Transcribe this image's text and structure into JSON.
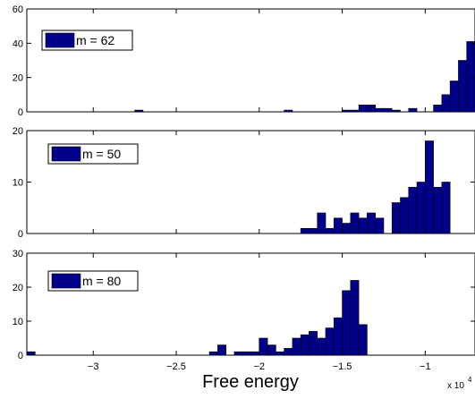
{
  "chart_data": [
    {
      "type": "bar",
      "legend": "m = 62",
      "ylim": [
        0,
        60
      ],
      "yticks": [
        0,
        20,
        40,
        60
      ],
      "bin_width": 0.05,
      "bins": [
        {
          "x": -2.725,
          "y": 1
        },
        {
          "x": -1.825,
          "y": 1
        },
        {
          "x": -1.475,
          "y": 1
        },
        {
          "x": -1.425,
          "y": 1
        },
        {
          "x": -1.375,
          "y": 4
        },
        {
          "x": -1.325,
          "y": 4
        },
        {
          "x": -1.275,
          "y": 2
        },
        {
          "x": -1.225,
          "y": 2
        },
        {
          "x": -1.175,
          "y": 1
        },
        {
          "x": -1.075,
          "y": 2
        },
        {
          "x": -0.925,
          "y": 4
        },
        {
          "x": -0.875,
          "y": 10
        },
        {
          "x": -0.825,
          "y": 18
        },
        {
          "x": -0.775,
          "y": 30
        },
        {
          "x": -0.725,
          "y": 41
        }
      ]
    },
    {
      "type": "bar",
      "legend": "m = 50",
      "ylim": [
        0,
        20
      ],
      "yticks": [
        0,
        10,
        20
      ],
      "bin_width": 0.05,
      "bins": [
        {
          "x": -1.725,
          "y": 1
        },
        {
          "x": -1.675,
          "y": 1
        },
        {
          "x": -1.625,
          "y": 4
        },
        {
          "x": -1.575,
          "y": 1
        },
        {
          "x": -1.525,
          "y": 3
        },
        {
          "x": -1.475,
          "y": 2
        },
        {
          "x": -1.425,
          "y": 4
        },
        {
          "x": -1.375,
          "y": 3
        },
        {
          "x": -1.325,
          "y": 4
        },
        {
          "x": -1.275,
          "y": 3
        },
        {
          "x": -1.175,
          "y": 6
        },
        {
          "x": -1.125,
          "y": 7
        },
        {
          "x": -1.075,
          "y": 9
        },
        {
          "x": -1.025,
          "y": 10
        },
        {
          "x": -0.975,
          "y": 18
        },
        {
          "x": -0.925,
          "y": 9
        },
        {
          "x": -0.875,
          "y": 10
        }
      ]
    },
    {
      "type": "bar",
      "legend": "m = 80",
      "ylim": [
        0,
        30
      ],
      "yticks": [
        0,
        10,
        20,
        30
      ],
      "bin_width": 0.05,
      "bins": [
        {
          "x": -3.375,
          "y": 1
        },
        {
          "x": -2.275,
          "y": 1
        },
        {
          "x": -2.225,
          "y": 3
        },
        {
          "x": -2.125,
          "y": 1
        },
        {
          "x": -2.075,
          "y": 1
        },
        {
          "x": -2.025,
          "y": 1
        },
        {
          "x": -1.975,
          "y": 5
        },
        {
          "x": -1.925,
          "y": 3
        },
        {
          "x": -1.875,
          "y": 1
        },
        {
          "x": -1.825,
          "y": 2
        },
        {
          "x": -1.775,
          "y": 5
        },
        {
          "x": -1.725,
          "y": 6
        },
        {
          "x": -1.675,
          "y": 7
        },
        {
          "x": -1.625,
          "y": 5
        },
        {
          "x": -1.575,
          "y": 8
        },
        {
          "x": -1.525,
          "y": 11
        },
        {
          "x": -1.475,
          "y": 19
        },
        {
          "x": -1.425,
          "y": 22
        },
        {
          "x": -1.375,
          "y": 9
        }
      ]
    }
  ],
  "axes": {
    "xlim": [
      -3.4,
      -0.7
    ],
    "xticks": [
      -3,
      -2.5,
      -2,
      -1.5,
      -1
    ],
    "xlabel": "Free energy",
    "x_multiplier": "x 10",
    "x_exponent": "4"
  },
  "colors": {
    "bar_fill": "#00008b",
    "bar_stroke": "#000000",
    "axis": "#000000",
    "background": "#ffffff"
  }
}
